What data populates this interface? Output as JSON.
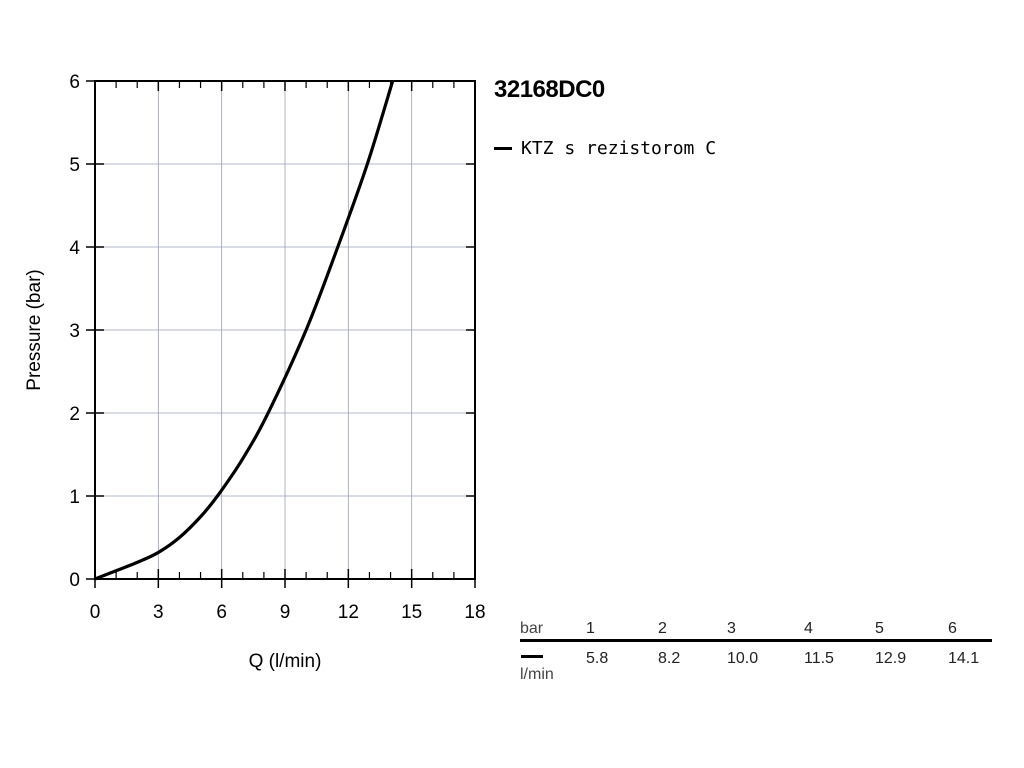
{
  "chart_data": {
    "type": "line",
    "title": "32168DC0",
    "xlabel": "Q (l/min)",
    "ylabel": "Pressure (bar)",
    "xlim": [
      0,
      18
    ],
    "ylim": [
      0,
      6
    ],
    "x_ticks": [
      0,
      3,
      6,
      9,
      12,
      15,
      18
    ],
    "y_ticks": [
      0,
      1,
      2,
      3,
      4,
      5,
      6
    ],
    "grid": true,
    "legend_position": "right",
    "series": [
      {
        "name": "KTZ s rezistorom C",
        "color": "#000000",
        "x": [
          0,
          1,
          2,
          3,
          4,
          5,
          5.8,
          7,
          8.2,
          10.0,
          11.5,
          12.9,
          14.1
        ],
        "y": [
          0,
          0.1,
          0.2,
          0.32,
          0.5,
          0.75,
          1,
          1.45,
          2,
          3,
          4,
          5,
          6
        ]
      }
    ],
    "table": {
      "pressure_unit": "bar",
      "flow_unit": "l/min",
      "pressure": [
        "1",
        "2",
        "3",
        "4",
        "5",
        "6"
      ],
      "flow": [
        "5.8",
        "8.2",
        "10.0",
        "11.5",
        "12.9",
        "14.1"
      ]
    }
  }
}
